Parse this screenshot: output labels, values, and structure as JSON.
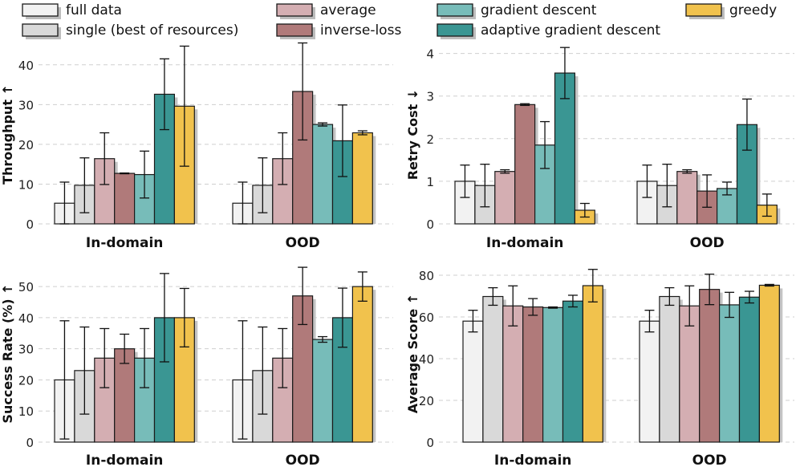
{
  "legend": {
    "placement": "top",
    "items": [
      {
        "label": "full data",
        "color": "#f2f2f2"
      },
      {
        "label": "single (best of resources)",
        "color": "#d9d9d9"
      },
      {
        "label": "average",
        "color": "#d4aeb2"
      },
      {
        "label": "inverse-loss",
        "color": "#b07a7a"
      },
      {
        "label": "gradient descent",
        "color": "#77bcb9"
      },
      {
        "label": "adaptive gradient descent",
        "color": "#3a9693"
      },
      {
        "label": "greedy",
        "color": "#f1c24d"
      }
    ]
  },
  "chart_data": [
    {
      "type": "bar",
      "ylabel": "Throughput ↑",
      "ylim": [
        0,
        45
      ],
      "yticks": [
        0,
        10,
        20,
        30,
        40
      ],
      "grid": true,
      "categories": [
        "In-domain",
        "OOD"
      ],
      "series": [
        {
          "name": "full data",
          "values": [
            5.2,
            5.2
          ],
          "errors": [
            5.3,
            5.3
          ]
        },
        {
          "name": "single (best of resources)",
          "values": [
            9.7,
            9.7
          ],
          "errors": [
            6.9,
            6.9
          ]
        },
        {
          "name": "average",
          "values": [
            16.4,
            16.4
          ],
          "errors": [
            6.5,
            6.5
          ]
        },
        {
          "name": "inverse-loss",
          "values": [
            12.7,
            33.3
          ],
          "errors": [
            0.1,
            12.2
          ]
        },
        {
          "name": "gradient descent",
          "values": [
            12.4,
            25.0
          ],
          "errors": [
            5.9,
            0.4
          ]
        },
        {
          "name": "adaptive gradient descent",
          "values": [
            32.6,
            20.9
          ],
          "errors": [
            8.9,
            9.0
          ]
        },
        {
          "name": "greedy",
          "values": [
            29.6,
            22.9
          ],
          "errors": [
            15.1,
            0.5
          ]
        }
      ]
    },
    {
      "type": "bar",
      "ylabel": "Retry Cost ↓",
      "ylim": [
        0,
        4.2
      ],
      "yticks": [
        0,
        1,
        2,
        3,
        4
      ],
      "grid": true,
      "categories": [
        "In-domain",
        "OOD"
      ],
      "series": [
        {
          "name": "full data",
          "values": [
            1.0,
            1.0
          ],
          "errors": [
            0.38,
            0.38
          ]
        },
        {
          "name": "single (best of resources)",
          "values": [
            0.9,
            0.9
          ],
          "errors": [
            0.5,
            0.5
          ]
        },
        {
          "name": "average",
          "values": [
            1.23,
            1.23
          ],
          "errors": [
            0.04,
            0.04
          ]
        },
        {
          "name": "inverse-loss",
          "values": [
            2.8,
            0.77
          ],
          "errors": [
            0.02,
            0.38
          ]
        },
        {
          "name": "gradient descent",
          "values": [
            1.85,
            0.83
          ],
          "errors": [
            0.55,
            0.15
          ]
        },
        {
          "name": "adaptive gradient descent",
          "values": [
            3.54,
            2.33
          ],
          "errors": [
            0.6,
            0.6
          ]
        },
        {
          "name": "greedy",
          "values": [
            0.32,
            0.44
          ],
          "errors": [
            0.16,
            0.26
          ]
        }
      ]
    },
    {
      "type": "bar",
      "ylabel": "Success Rate (%) ↑",
      "ylim": [
        0,
        57
      ],
      "yticks": [
        0,
        10,
        20,
        30,
        40,
        50
      ],
      "grid": true,
      "categories": [
        "In-domain",
        "OOD"
      ],
      "series": [
        {
          "name": "full data",
          "values": [
            20,
            20
          ],
          "errors": [
            19,
            19
          ]
        },
        {
          "name": "single (best of resources)",
          "values": [
            23,
            23
          ],
          "errors": [
            14,
            14
          ]
        },
        {
          "name": "average",
          "values": [
            27,
            27
          ],
          "errors": [
            9.5,
            9.5
          ]
        },
        {
          "name": "inverse-loss",
          "values": [
            30,
            47
          ],
          "errors": [
            4.7,
            9.2
          ]
        },
        {
          "name": "gradient descent",
          "values": [
            27,
            33
          ],
          "errors": [
            9.5,
            0.9
          ]
        },
        {
          "name": "adaptive gradient descent",
          "values": [
            40,
            40
          ],
          "errors": [
            14.2,
            9.5
          ]
        },
        {
          "name": "greedy",
          "values": [
            40,
            50
          ],
          "errors": [
            9.4,
            4.7
          ]
        }
      ]
    },
    {
      "type": "bar",
      "ylabel": "Average Score ↑",
      "ylim": [
        0,
        85
      ],
      "yticks": [
        0,
        20,
        40,
        60,
        80
      ],
      "grid": true,
      "categories": [
        "In-domain",
        "OOD"
      ],
      "series": [
        {
          "name": "full data",
          "values": [
            58,
            58
          ],
          "errors": [
            5.2,
            5.2
          ]
        },
        {
          "name": "single (best of resources)",
          "values": [
            69.8,
            69.8
          ],
          "errors": [
            4.2,
            4.2
          ]
        },
        {
          "name": "average",
          "values": [
            65.3,
            65.3
          ],
          "errors": [
            9.6,
            9.6
          ]
        },
        {
          "name": "inverse-loss",
          "values": [
            64.8,
            73.2
          ],
          "errors": [
            4.0,
            7.3
          ]
        },
        {
          "name": "gradient descent",
          "values": [
            64.5,
            65.8
          ],
          "errors": [
            0.3,
            6.0
          ]
        },
        {
          "name": "adaptive gradient descent",
          "values": [
            67.6,
            69.5
          ],
          "errors": [
            2.8,
            2.8
          ]
        },
        {
          "name": "greedy",
          "values": [
            75.0,
            75.2
          ],
          "errors": [
            7.8,
            0.4
          ]
        }
      ]
    }
  ]
}
